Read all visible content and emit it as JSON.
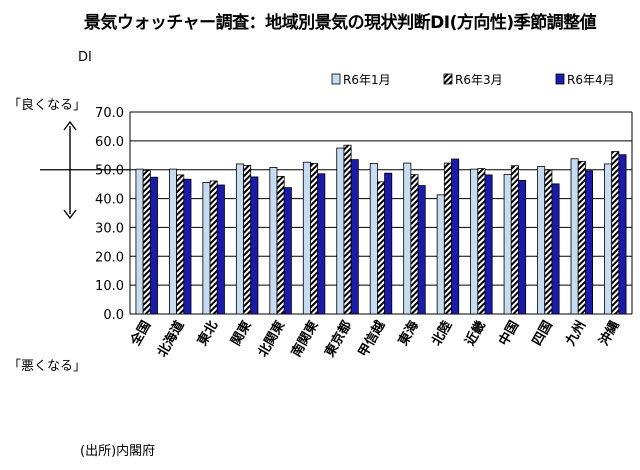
{
  "chart_data": {
    "type": "bar",
    "title": "景気ウォッチャー調査：地域別景気の現状判断DI(方向性)季節調整値",
    "ylabel": "DI",
    "good_label": "「良くなる」",
    "bad_label": "「悪くなる」",
    "source": "(出所)内閣府",
    "ylim": [
      0,
      70
    ],
    "yticks": [
      "0.0",
      "10.0",
      "20.0",
      "30.0",
      "40.0",
      "50.0",
      "60.0",
      "70.0"
    ],
    "reference_line": 50,
    "grid": true,
    "legend_position": "top-right",
    "categories": [
      "全国",
      "北海道",
      "東北",
      "関東",
      "北関東",
      "南関東",
      "東京都",
      "甲信越",
      "東海",
      "北陸",
      "近畿",
      "中国",
      "四国",
      "九州",
      "沖縄"
    ],
    "series": [
      {
        "name": "R6年1月",
        "color": "#c5dcf2",
        "pattern": "solid",
        "values": [
          50.2,
          50.2,
          45.6,
          52.0,
          50.8,
          52.6,
          57.5,
          52.2,
          52.3,
          41.3,
          50.2,
          48.4,
          51.1,
          53.8,
          52.0
        ]
      },
      {
        "name": "R6年3月",
        "color": "#000000",
        "pattern": "hatch",
        "values": [
          49.8,
          48.2,
          46.1,
          51.5,
          47.7,
          52.2,
          58.5,
          45.8,
          48.3,
          52.3,
          50.4,
          51.4,
          49.9,
          52.9,
          56.3
        ]
      },
      {
        "name": "R6年4月",
        "color": "#1a1ab0",
        "pattern": "solid",
        "values": [
          47.4,
          46.7,
          44.7,
          47.5,
          43.8,
          48.6,
          53.5,
          48.8,
          44.5,
          53.7,
          48.2,
          46.3,
          45.1,
          49.6,
          55.2
        ]
      }
    ]
  }
}
